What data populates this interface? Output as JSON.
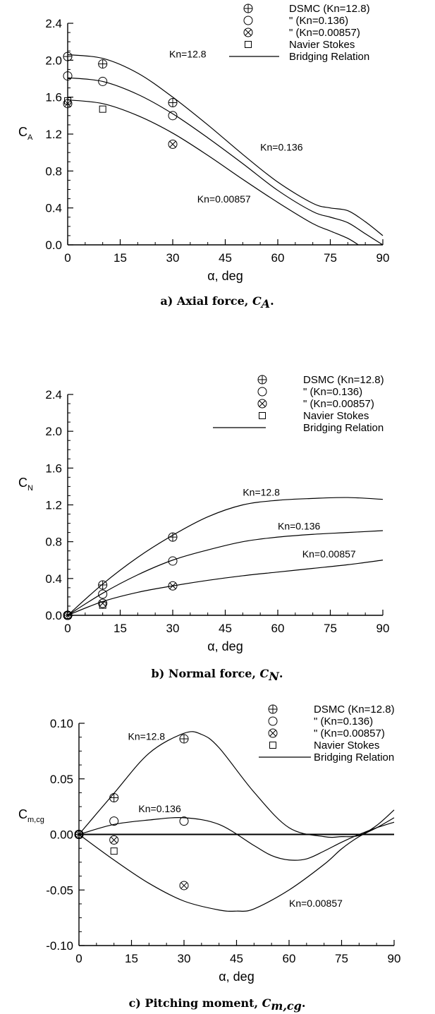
{
  "chart_data": [
    {
      "type": "line",
      "panel": "a",
      "caption": "a) Axial force, ",
      "caption_symbol": "C",
      "caption_subscript": "A",
      "caption_suffix": ".",
      "ylabel": "C",
      "ylabel_sub": "A",
      "xlabel": "α, deg",
      "xlim": [
        0,
        90
      ],
      "ylim": [
        0,
        2.4
      ],
      "xticks": [
        0,
        15,
        30,
        45,
        60,
        75,
        90
      ],
      "yticks": [
        0,
        0.4,
        0.8,
        1.2,
        1.6,
        2.0,
        2.4
      ],
      "ytick_labels": [
        "0.0",
        "0.4",
        "0.8",
        "1.2",
        "1.6",
        "2.0",
        "2.4"
      ],
      "zero_line": false,
      "legend": [
        {
          "marker": "circle-plus",
          "label": "DSMC (Kn=12.8)"
        },
        {
          "marker": "circle",
          "label": "\"     (Kn=0.136)"
        },
        {
          "marker": "circle-x",
          "label": "\"     (Kn=0.00857)"
        },
        {
          "marker": "square",
          "label": "Navier Stokes"
        },
        {
          "marker": "line",
          "label": "Bridging Relation"
        }
      ],
      "series": [
        {
          "x": [
            0,
            10,
            20,
            30,
            40,
            50,
            60,
            70,
            75,
            80,
            85,
            90
          ],
          "values": [
            2.06,
            2.02,
            1.86,
            1.6,
            1.3,
            0.98,
            0.68,
            0.45,
            0.4,
            0.37,
            0.25,
            0.1
          ]
        },
        {
          "x": [
            0,
            10,
            20,
            30,
            40,
            50,
            60,
            70,
            75,
            80,
            85,
            90
          ],
          "values": [
            1.81,
            1.77,
            1.63,
            1.42,
            1.16,
            0.88,
            0.59,
            0.36,
            0.3,
            0.24,
            0.12,
            0.0
          ]
        },
        {
          "x": [
            0,
            10,
            20,
            30,
            40,
            50,
            60,
            70,
            75,
            80,
            83
          ],
          "values": [
            1.57,
            1.53,
            1.4,
            1.21,
            0.97,
            0.71,
            0.46,
            0.23,
            0.15,
            0.07,
            0.0
          ]
        },
        {
          "marker": "circle-plus",
          "x": [
            0,
            10,
            30
          ],
          "values": [
            2.04,
            1.96,
            1.54
          ]
        },
        {
          "marker": "circle",
          "x": [
            0,
            10,
            30
          ],
          "values": [
            1.83,
            1.77,
            1.4
          ]
        },
        {
          "marker": "circle-x",
          "x": [
            0,
            30
          ],
          "values": [
            1.53,
            1.09
          ]
        },
        {
          "marker": "square",
          "x": [
            0,
            10
          ],
          "values": [
            1.56,
            1.47
          ]
        }
      ],
      "annotations": [
        {
          "text": "Kn=12.8",
          "x": 29,
          "y": 2.03
        },
        {
          "text": "Kn=0.136",
          "x": 55,
          "y": 1.02
        },
        {
          "text": "Kn=0.00857",
          "x": 37,
          "y": 0.46
        }
      ]
    },
    {
      "type": "line",
      "panel": "b",
      "caption": "b) Normal force, ",
      "caption_symbol": "C",
      "caption_subscript": "N",
      "caption_suffix": ".",
      "ylabel": "C",
      "ylabel_sub": "N",
      "xlabel": "α, deg",
      "xlim": [
        0,
        90
      ],
      "ylim": [
        0,
        2.4
      ],
      "xticks": [
        0,
        15,
        30,
        45,
        60,
        75,
        90
      ],
      "yticks": [
        0,
        0.4,
        0.8,
        1.2,
        1.6,
        2.0,
        2.4
      ],
      "ytick_labels": [
        "0.0",
        "0.4",
        "0.8",
        "1.2",
        "1.6",
        "2.0",
        "2.4"
      ],
      "zero_line": false,
      "legend": [
        {
          "marker": "circle-plus",
          "label": "DSMC (Kn=12.8)"
        },
        {
          "marker": "circle",
          "label": "\"     (Kn=0.136)"
        },
        {
          "marker": "circle-x",
          "label": "\"     (Kn=0.00857)"
        },
        {
          "marker": "square",
          "label": "Navier Stokes"
        },
        {
          "marker": "line",
          "label": "Bridging Relation"
        }
      ],
      "series": [
        {
          "x": [
            0,
            10,
            20,
            30,
            40,
            50,
            60,
            70,
            80,
            90
          ],
          "values": [
            0.0,
            0.34,
            0.63,
            0.87,
            1.07,
            1.2,
            1.25,
            1.27,
            1.28,
            1.26
          ]
        },
        {
          "x": [
            0,
            10,
            20,
            30,
            40,
            50,
            60,
            70,
            80,
            90
          ],
          "values": [
            0.0,
            0.24,
            0.44,
            0.6,
            0.71,
            0.8,
            0.85,
            0.88,
            0.9,
            0.92
          ]
        },
        {
          "x": [
            0,
            10,
            20,
            30,
            40,
            50,
            60,
            70,
            80,
            90
          ],
          "values": [
            0.0,
            0.15,
            0.25,
            0.32,
            0.38,
            0.43,
            0.47,
            0.51,
            0.55,
            0.6
          ]
        },
        {
          "marker": "circle-plus",
          "x": [
            0,
            10,
            30
          ],
          "values": [
            0.0,
            0.33,
            0.85
          ]
        },
        {
          "marker": "circle",
          "x": [
            0,
            10,
            30
          ],
          "values": [
            0.0,
            0.23,
            0.59
          ]
        },
        {
          "marker": "circle-x",
          "x": [
            0,
            10,
            30
          ],
          "values": [
            0.0,
            0.13,
            0.32
          ]
        },
        {
          "marker": "square",
          "x": [
            0,
            10
          ],
          "values": [
            0.0,
            0.11
          ]
        }
      ],
      "annotations": [
        {
          "text": "Kn=12.8",
          "x": 50,
          "y": 1.3
        },
        {
          "text": "Kn=0.136",
          "x": 60,
          "y": 0.93
        },
        {
          "text": "Kn=0.00857",
          "x": 67,
          "y": 0.63
        }
      ]
    },
    {
      "type": "line",
      "panel": "c",
      "caption": "c) Pitching moment, ",
      "caption_symbol": "C",
      "caption_subscript": "m,cg",
      "caption_suffix": ".",
      "ylabel": "C",
      "ylabel_sub": "m,cg",
      "xlabel": "α, deg",
      "xlim": [
        0,
        90
      ],
      "ylim": [
        -0.1,
        0.1
      ],
      "xticks": [
        0,
        15,
        30,
        45,
        60,
        75,
        90
      ],
      "yticks": [
        -0.1,
        -0.05,
        0.0,
        0.05,
        0.1
      ],
      "ytick_labels": [
        "-0.10",
        "-0.05",
        "0.00",
        "0.05",
        "0.10"
      ],
      "zero_line": true,
      "legend": [
        {
          "marker": "circle-plus",
          "label": "DSMC (Kn=12.8)"
        },
        {
          "marker": "circle",
          "label": "\"     (Kn=0.136)"
        },
        {
          "marker": "circle-x",
          "label": "\"     (Kn=0.00857)"
        },
        {
          "marker": "square",
          "label": "Navier Stokes"
        },
        {
          "marker": "line",
          "label": "Bridging Relation"
        }
      ],
      "series": [
        {
          "x": [
            0,
            10,
            20,
            30,
            35,
            40,
            50,
            60,
            70,
            75,
            80,
            85,
            90
          ],
          "values": [
            0.0,
            0.037,
            0.073,
            0.091,
            0.09,
            0.078,
            0.038,
            0.006,
            -0.002,
            -0.002,
            -0.001,
            0.008,
            0.022
          ]
        },
        {
          "x": [
            0,
            10,
            20,
            30,
            40,
            50,
            55,
            60,
            65,
            70,
            75,
            80,
            85,
            90
          ],
          "values": [
            0.0,
            0.009,
            0.013,
            0.015,
            0.009,
            -0.01,
            -0.019,
            -0.023,
            -0.022,
            -0.015,
            -0.007,
            0.0,
            0.006,
            0.011
          ]
        },
        {
          "x": [
            0,
            10,
            20,
            30,
            40,
            45,
            50,
            60,
            70,
            75,
            80,
            85,
            90
          ],
          "values": [
            0.0,
            -0.023,
            -0.044,
            -0.06,
            -0.068,
            -0.069,
            -0.067,
            -0.05,
            -0.027,
            -0.013,
            -0.002,
            0.006,
            0.015
          ]
        },
        {
          "marker": "circle-plus",
          "x": [
            0,
            10,
            30
          ],
          "values": [
            0.0,
            0.033,
            0.086
          ]
        },
        {
          "marker": "circle",
          "x": [
            0,
            10,
            30
          ],
          "values": [
            0.0,
            0.012,
            0.012
          ]
        },
        {
          "marker": "circle-x",
          "x": [
            0,
            10,
            30
          ],
          "values": [
            0.0,
            -0.005,
            -0.046
          ]
        },
        {
          "marker": "square",
          "x": [
            0,
            10
          ],
          "values": [
            0.0,
            -0.015
          ]
        }
      ],
      "annotations": [
        {
          "text": "Kn=12.8",
          "x": 14,
          "y": 0.085
        },
        {
          "text": "Kn=0.136",
          "x": 17,
          "y": 0.02
        },
        {
          "text": "Kn=0.00857",
          "x": 60,
          "y": -0.065
        }
      ]
    }
  ]
}
